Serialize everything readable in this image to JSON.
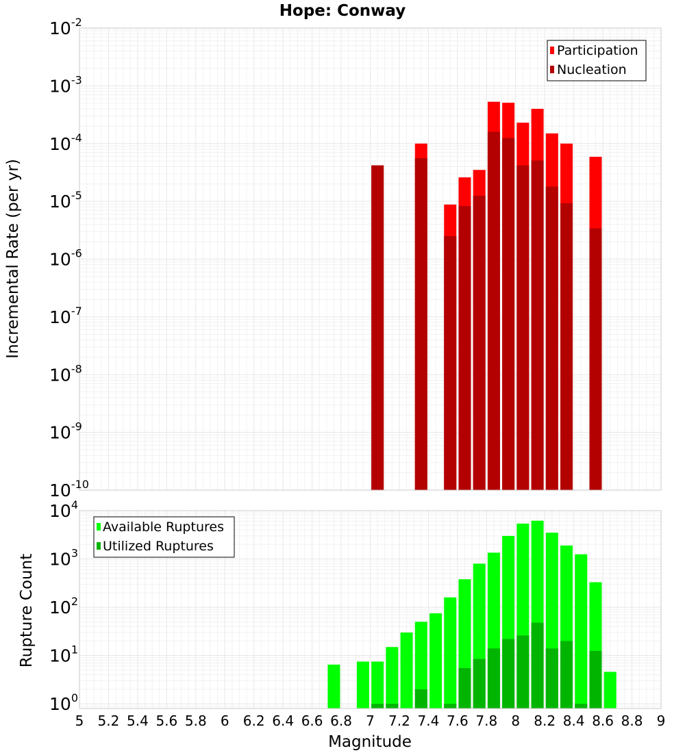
{
  "chart_data": [
    {
      "type": "bar",
      "title": "Hope: Conway",
      "xlabel": "",
      "ylabel": "Incremental Rate (per yr)",
      "yscale": "log",
      "ylim": [
        1e-10,
        0.01
      ],
      "xlim": [
        5,
        9
      ],
      "y_tick_labels": [
        {
          "base": "10",
          "exp": "-2"
        },
        {
          "base": "10",
          "exp": "-3"
        },
        {
          "base": "10",
          "exp": "-4"
        },
        {
          "base": "10",
          "exp": "-5"
        },
        {
          "base": "10",
          "exp": "-6"
        },
        {
          "base": "10",
          "exp": "-7"
        },
        {
          "base": "10",
          "exp": "-8"
        },
        {
          "base": "10",
          "exp": "-9"
        },
        {
          "base": "10",
          "exp": "-10"
        }
      ],
      "legend_position": "top-right",
      "grid": true,
      "series": [
        {
          "name": "Participation",
          "color": "#ff0000",
          "x": [
            7.05,
            7.35,
            7.55,
            7.65,
            7.75,
            7.85,
            7.95,
            8.05,
            8.15,
            8.25,
            8.35,
            8.55
          ],
          "values": [
            4.2e-05,
            0.0001,
            8.8e-06,
            2.6e-05,
            3.5e-05,
            0.00053,
            0.00051,
            0.00023,
            0.0004,
            0.00015,
            0.0001,
            5.9e-05
          ]
        },
        {
          "name": "Nucleation",
          "color": "#b30000",
          "x": [
            7.05,
            7.35,
            7.55,
            7.65,
            7.75,
            7.85,
            7.95,
            8.05,
            8.15,
            8.25,
            8.35,
            8.55
          ],
          "values": [
            4.2e-05,
            5.6e-05,
            2.5e-06,
            8.3e-06,
            1.25e-05,
            0.00016,
            0.000125,
            4.2e-05,
            5.1e-05,
            1.8e-05,
            9.3e-06,
            3.4e-06
          ]
        }
      ]
    },
    {
      "type": "bar",
      "title": "",
      "xlabel": "Magnitude",
      "ylabel": "Rupture Count",
      "yscale": "log",
      "ylim": [
        0.8,
        10000
      ],
      "xlim": [
        5,
        9
      ],
      "x_ticks": [
        "5",
        "5.2",
        "5.4",
        "5.6",
        "5.8",
        "6",
        "6.2",
        "6.4",
        "6.6",
        "6.8",
        "7",
        "7.2",
        "7.4",
        "7.6",
        "7.8",
        "8",
        "8.2",
        "8.4",
        "8.6",
        "8.8",
        "9"
      ],
      "y_tick_labels": [
        {
          "base": "10",
          "exp": "4"
        },
        {
          "base": "10",
          "exp": "3"
        },
        {
          "base": "10",
          "exp": "2"
        },
        {
          "base": "10",
          "exp": "1"
        },
        {
          "base": "10",
          "exp": "0"
        }
      ],
      "legend_position": "top-left",
      "grid": true,
      "series": [
        {
          "name": "Available Ruptures",
          "color": "#00ff00",
          "x": [
            6.75,
            6.95,
            7.05,
            7.15,
            7.25,
            7.35,
            7.45,
            7.55,
            7.65,
            7.75,
            7.85,
            7.95,
            8.05,
            8.15,
            8.25,
            8.35,
            8.45,
            8.55,
            8.65
          ],
          "values": [
            6.5,
            7.5,
            7.5,
            15,
            30,
            50,
            75,
            160,
            380,
            800,
            1350,
            3000,
            5400,
            6200,
            3500,
            1900,
            1250,
            330,
            4.6
          ]
        },
        {
          "name": "Utilized Ruptures",
          "color": "#00b400",
          "x": [
            7.05,
            7.15,
            7.35,
            7.55,
            7.65,
            7.75,
            7.85,
            7.95,
            8.05,
            8.15,
            8.25,
            8.35,
            8.45,
            8.55
          ],
          "values": [
            1,
            1,
            2,
            1,
            5.5,
            8.5,
            14,
            22,
            26,
            48,
            14,
            20,
            1,
            12.5
          ]
        }
      ]
    }
  ]
}
